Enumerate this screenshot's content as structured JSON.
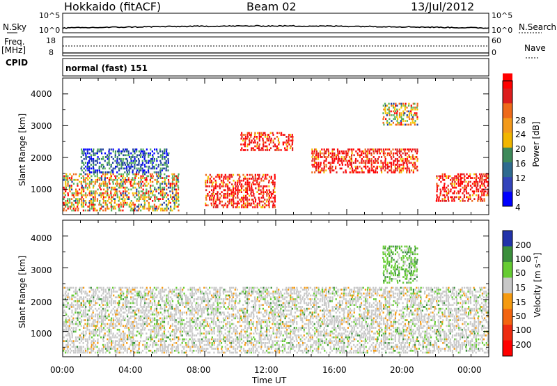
{
  "header": {
    "station": "Hokkaido (fitACF)",
    "beam": "Beam 02",
    "date": "13/Jul/2012"
  },
  "side_labels": {
    "nsky": "N.Sky",
    "freq_line1": "Freq.",
    "freq_line2": "[MHz]",
    "cpid": "CPID",
    "nsearch": "N.Search",
    "nave": "Nave"
  },
  "top_panel_ticks": {
    "n_left": [
      "10^5",
      "10^0"
    ],
    "n_right": [
      "10^5",
      "10^0"
    ],
    "freq_left": [
      "18",
      "8"
    ],
    "nave_right": [
      "60",
      "0"
    ]
  },
  "cpid_text": "normal (fast) 151",
  "colors": {
    "power_scale": [
      "#0000ff",
      "#1f3f9f",
      "#3a8d5e",
      "#57b05a",
      "#f5c400",
      "#f39a1b",
      "#ee6a1a",
      "#dd1d1d",
      "#ff0000"
    ],
    "velocity_scale": [
      "#2233aa",
      "#3b8f3c",
      "#66cc33",
      "#c8c8c8",
      "#f59a10",
      "#f36410",
      "#ee2b10",
      "#ff0000"
    ]
  },
  "chart_data": [
    {
      "type": "heatmap",
      "title": "",
      "ylabel": "Slant Range [km]",
      "xlabel": "",
      "ylim": [
        200,
        4500
      ],
      "y_ticks": [
        "1000",
        "2000",
        "3000",
        "4000"
      ],
      "x_ticks": [
        "00:00",
        "04:00",
        "08:00",
        "12:00",
        "16:00",
        "20:00",
        "00:00"
      ],
      "colorbar": {
        "label": "Power [dB]",
        "ticks": [
          "4",
          "8",
          "12",
          "16",
          "20",
          "24",
          "28"
        ]
      },
      "echo_regions": [
        {
          "t_start_h": 0,
          "t_end_h": 6.5,
          "range_min_km": 300,
          "range_max_km": 1500,
          "dominant": "mid"
        },
        {
          "t_start_h": 1,
          "t_end_h": 6,
          "range_min_km": 1500,
          "range_max_km": 2300,
          "dominant": "low"
        },
        {
          "t_start_h": 8,
          "t_end_h": 12,
          "range_min_km": 400,
          "range_max_km": 1500,
          "dominant": "high"
        },
        {
          "t_start_h": 10,
          "t_end_h": 13,
          "range_min_km": 2200,
          "range_max_km": 2800,
          "dominant": "high"
        },
        {
          "t_start_h": 14,
          "t_end_h": 20,
          "range_min_km": 1500,
          "range_max_km": 2300,
          "dominant": "high"
        },
        {
          "t_start_h": 18,
          "t_end_h": 20,
          "range_min_km": 3000,
          "range_max_km": 3700,
          "dominant": "mid"
        },
        {
          "t_start_h": 21,
          "t_end_h": 24,
          "range_min_km": 600,
          "range_max_km": 1500,
          "dominant": "high"
        }
      ]
    },
    {
      "type": "heatmap",
      "title": "",
      "ylabel": "Slant Range [km]",
      "xlabel": "Time UT",
      "ylim": [
        200,
        4500
      ],
      "y_ticks": [
        "1000",
        "2000",
        "3000",
        "4000"
      ],
      "x_ticks": [
        "00:00",
        "04:00",
        "08:00",
        "12:00",
        "16:00",
        "20:00",
        "00:00"
      ],
      "colorbar": {
        "label": "Velocity [m s⁻¹]",
        "ticks": [
          "200",
          "100",
          "50",
          "15",
          "-15",
          "-50",
          "-100",
          "-200"
        ]
      },
      "echo_regions": [
        {
          "t_start_h": 0,
          "t_end_h": 24,
          "range_min_km": 300,
          "range_max_km": 2400,
          "dominant": "near-zero"
        },
        {
          "t_start_h": 18,
          "t_end_h": 20,
          "range_min_km": 2500,
          "range_max_km": 3700,
          "dominant": "positive"
        }
      ]
    }
  ]
}
